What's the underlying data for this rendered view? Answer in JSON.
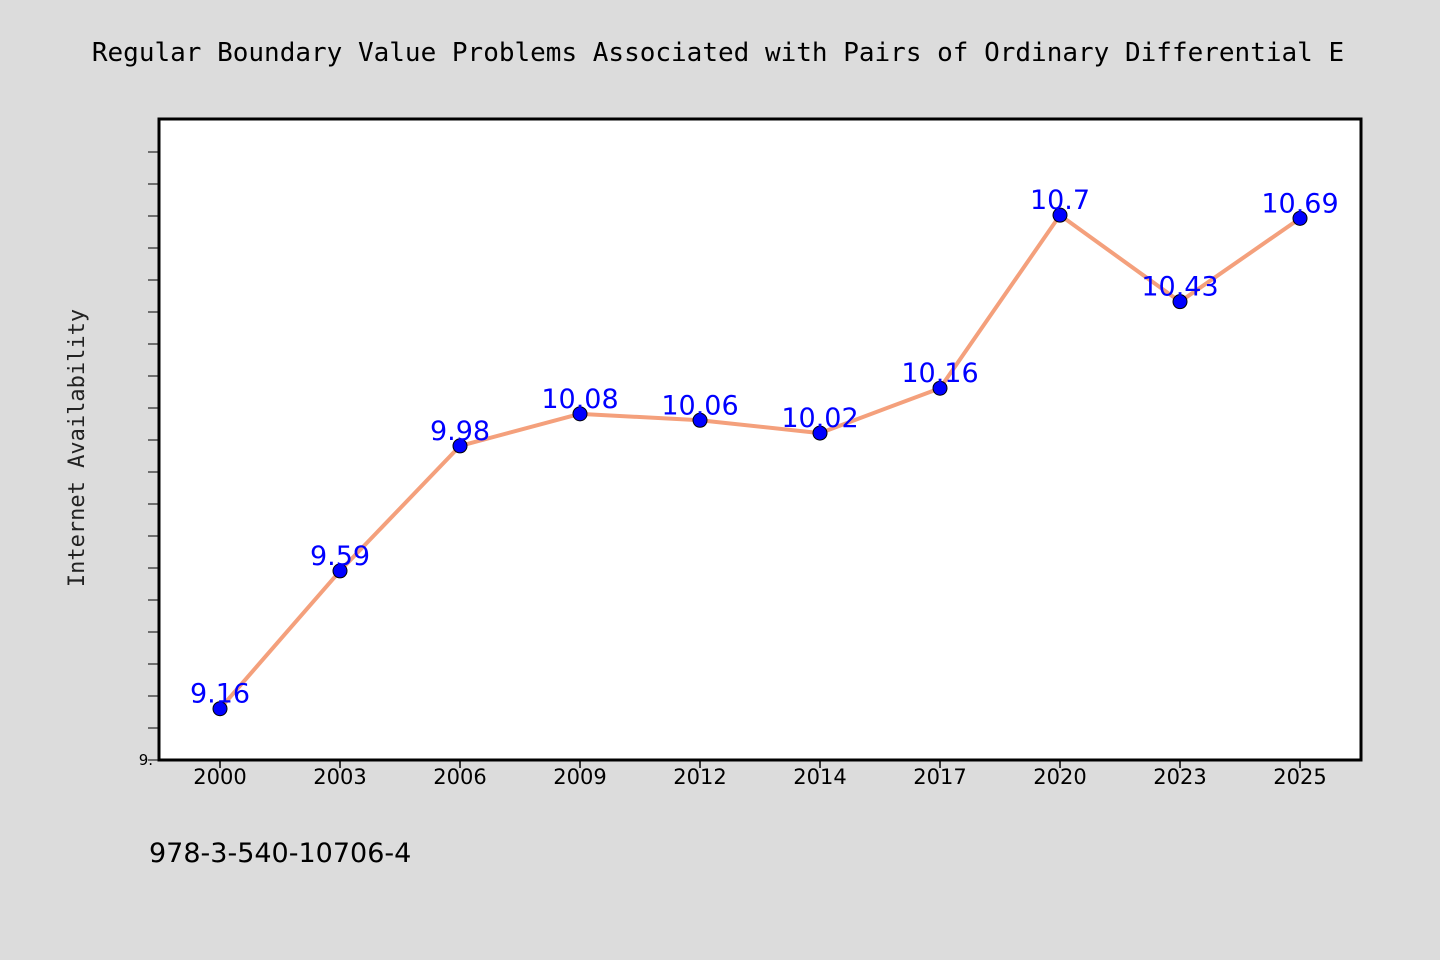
{
  "chart_data": {
    "type": "line",
    "title": "Regular Boundary Value Problems Associated with Pairs of Ordinary Differential E",
    "ylabel": "Internet Availability",
    "xlabel": "",
    "categories": [
      "2000",
      "2003",
      "2006",
      "2009",
      "2012",
      "2014",
      "2017",
      "2020",
      "2023",
      "2025"
    ],
    "series": [
      {
        "values": [
          9.16,
          9.59,
          9.98,
          10.08,
          10.06,
          10.02,
          10.16,
          10.7,
          10.43,
          10.69
        ]
      }
    ],
    "data_labels": [
      "9.16",
      "9.59",
      "9.98",
      "10.08",
      "10.06",
      "10.02",
      "10.16",
      "10.7",
      "10.43",
      "10.69"
    ],
    "ylim": [
      9.0,
      11.0
    ],
    "y_tick_labels": [
      "9."
    ],
    "grid": false,
    "legend": "none",
    "colors": {
      "background": "#dcdcdc",
      "plot_background": "#ffffff",
      "line": "#f4a07c",
      "marker": "#0000ff",
      "data_label": "#0000ff"
    }
  },
  "footer": {
    "isbn": "978-3-540-10706-4"
  }
}
